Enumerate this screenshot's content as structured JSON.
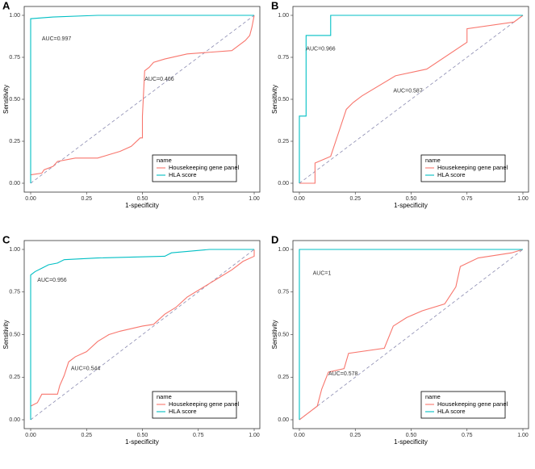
{
  "chart_data": [
    {
      "type": "line",
      "panel_label": "A",
      "xlabel": "1-specificity",
      "ylabel": "Sensitivity",
      "xlim": [
        0,
        1
      ],
      "ylim": [
        0,
        1
      ],
      "xticks": [
        {
          "value": 0,
          "label": "0.00"
        },
        {
          "value": 0.25,
          "label": "0.25"
        },
        {
          "value": 0.5,
          "label": "0.50"
        },
        {
          "value": 0.75,
          "label": "0.75"
        },
        {
          "value": 1,
          "label": "1.00"
        }
      ],
      "yticks": [
        {
          "value": 0,
          "label": "0.00"
        },
        {
          "value": 0.25,
          "label": "0.25"
        },
        {
          "value": 0.5,
          "label": "0.50"
        },
        {
          "value": 0.75,
          "label": "0.75"
        },
        {
          "value": 1,
          "label": "1.00"
        }
      ],
      "legend_title": "name",
      "legend": "bottom-right",
      "annotations": [
        "AUC=0.997",
        "AUC=0.466"
      ],
      "series": [
        {
          "name": "Housekeeping gene panel",
          "color": "#F8766D",
          "x": [
            0,
            0.05,
            0.06,
            0.1,
            0.12,
            0.2,
            0.3,
            0.35,
            0.4,
            0.45,
            0.49,
            0.5,
            0.5,
            0.51,
            0.53,
            0.55,
            0.6,
            0.7,
            0.8,
            0.9,
            0.93,
            0.96,
            0.98,
            0.99,
            1
          ],
          "values": [
            0.05,
            0.06,
            0.08,
            0.1,
            0.13,
            0.15,
            0.15,
            0.17,
            0.19,
            0.22,
            0.27,
            0.27,
            0.4,
            0.67,
            0.69,
            0.72,
            0.74,
            0.77,
            0.78,
            0.79,
            0.82,
            0.85,
            0.88,
            0.93,
            1
          ]
        },
        {
          "name": "HLA score",
          "color": "#00BFC4",
          "x": [
            0,
            0,
            0.1,
            0.3,
            1
          ],
          "values": [
            0,
            0.98,
            0.99,
            1,
            1
          ]
        }
      ]
    },
    {
      "type": "line",
      "panel_label": "B",
      "xlabel": "1-specificity",
      "ylabel": "Sensitivity",
      "xlim": [
        0,
        1
      ],
      "ylim": [
        0,
        1
      ],
      "xticks": [
        {
          "value": 0,
          "label": "0.00"
        },
        {
          "value": 0.25,
          "label": "0.25"
        },
        {
          "value": 0.5,
          "label": "0.50"
        },
        {
          "value": 0.75,
          "label": "0.75"
        },
        {
          "value": 1,
          "label": "1.00"
        }
      ],
      "yticks": [
        {
          "value": 0,
          "label": "0.00"
        },
        {
          "value": 0.25,
          "label": "0.25"
        },
        {
          "value": 0.5,
          "label": "0.50"
        },
        {
          "value": 0.75,
          "label": "0.75"
        },
        {
          "value": 1,
          "label": "1.00"
        }
      ],
      "legend_title": "name",
      "legend": "bottom-right",
      "annotations": [
        "AUC=0.966",
        "AUC=0.587"
      ],
      "series": [
        {
          "name": "Housekeeping gene panel",
          "color": "#F8766D",
          "x": [
            0,
            0.07,
            0.07,
            0.14,
            0.17,
            0.21,
            0.24,
            0.28,
            0.43,
            0.57,
            0.75,
            0.75,
            0.96,
            1
          ],
          "values": [
            0,
            0,
            0.12,
            0.16,
            0.28,
            0.44,
            0.48,
            0.52,
            0.64,
            0.68,
            0.84,
            0.92,
            0.96,
            1
          ]
        },
        {
          "name": "HLA score",
          "color": "#00BFC4",
          "x": [
            0,
            0,
            0.03,
            0.03,
            0.14,
            0.14,
            1
          ],
          "values": [
            0,
            0.4,
            0.4,
            0.88,
            0.88,
            1,
            1
          ]
        }
      ]
    },
    {
      "type": "line",
      "panel_label": "C",
      "xlabel": "1-specificity",
      "ylabel": "Sensitivity",
      "xlim": [
        0,
        1
      ],
      "ylim": [
        0,
        1
      ],
      "xticks": [
        {
          "value": 0,
          "label": "0.00"
        },
        {
          "value": 0.25,
          "label": "0.25"
        },
        {
          "value": 0.5,
          "label": "0.50"
        },
        {
          "value": 0.75,
          "label": "0.75"
        },
        {
          "value": 1,
          "label": "1.00"
        }
      ],
      "yticks": [
        {
          "value": 0,
          "label": "0.00"
        },
        {
          "value": 0.25,
          "label": "0.25"
        },
        {
          "value": 0.5,
          "label": "0.50"
        },
        {
          "value": 0.75,
          "label": "0.75"
        },
        {
          "value": 1,
          "label": "1.00"
        }
      ],
      "legend_title": "name",
      "legend": "bottom-right",
      "annotations": [
        "AUC=0.956",
        "AUC=0.544"
      ],
      "series": [
        {
          "name": "Housekeeping gene panel",
          "color": "#F8766D",
          "x": [
            0,
            0.03,
            0.05,
            0.12,
            0.13,
            0.15,
            0.17,
            0.2,
            0.25,
            0.3,
            0.35,
            0.4,
            0.5,
            0.55,
            0.6,
            0.65,
            0.7,
            0.75,
            0.8,
            0.85,
            0.9,
            0.95,
            1,
            1
          ],
          "values": [
            0.08,
            0.1,
            0.15,
            0.15,
            0.2,
            0.26,
            0.34,
            0.37,
            0.4,
            0.46,
            0.5,
            0.52,
            0.55,
            0.56,
            0.62,
            0.66,
            0.72,
            0.76,
            0.8,
            0.84,
            0.88,
            0.93,
            0.96,
            1
          ]
        },
        {
          "name": "HLA score",
          "color": "#00BFC4",
          "x": [
            0,
            0,
            0.02,
            0.05,
            0.08,
            0.12,
            0.15,
            0.3,
            0.6,
            0.63,
            0.8,
            1
          ],
          "values": [
            0,
            0.85,
            0.87,
            0.89,
            0.91,
            0.92,
            0.94,
            0.95,
            0.96,
            0.98,
            1,
            1
          ]
        }
      ]
    },
    {
      "type": "line",
      "panel_label": "D",
      "xlabel": "1-specificity",
      "ylabel": "Sensitivity",
      "xlim": [
        0,
        1
      ],
      "ylim": [
        0,
        1
      ],
      "xticks": [
        {
          "value": 0,
          "label": "0.00"
        },
        {
          "value": 0.25,
          "label": "0.25"
        },
        {
          "value": 0.5,
          "label": "0.50"
        },
        {
          "value": 0.75,
          "label": "0.75"
        },
        {
          "value": 1,
          "label": "1.00"
        }
      ],
      "yticks": [
        {
          "value": 0,
          "label": "0.00"
        },
        {
          "value": 0.25,
          "label": "0.25"
        },
        {
          "value": 0.5,
          "label": "0.50"
        },
        {
          "value": 0.75,
          "label": "0.75"
        },
        {
          "value": 1,
          "label": "1.00"
        }
      ],
      "legend_title": "name",
      "legend": "bottom-right",
      "annotations": [
        "AUC=1",
        "AUC=0.578"
      ],
      "series": [
        {
          "name": "Housekeeping gene panel",
          "color": "#F8766D",
          "x": [
            0,
            0.05,
            0.08,
            0.1,
            0.13,
            0.2,
            0.22,
            0.38,
            0.42,
            0.48,
            0.55,
            0.65,
            0.7,
            0.72,
            0.8,
            0.95,
            1
          ],
          "values": [
            0,
            0.05,
            0.08,
            0.18,
            0.28,
            0.3,
            0.39,
            0.42,
            0.55,
            0.6,
            0.64,
            0.68,
            0.78,
            0.9,
            0.95,
            0.98,
            1
          ]
        },
        {
          "name": "HLA score",
          "color": "#00BFC4",
          "x": [
            0,
            0,
            0.8,
            1
          ],
          "values": [
            0,
            1,
            1,
            1
          ]
        }
      ]
    }
  ]
}
